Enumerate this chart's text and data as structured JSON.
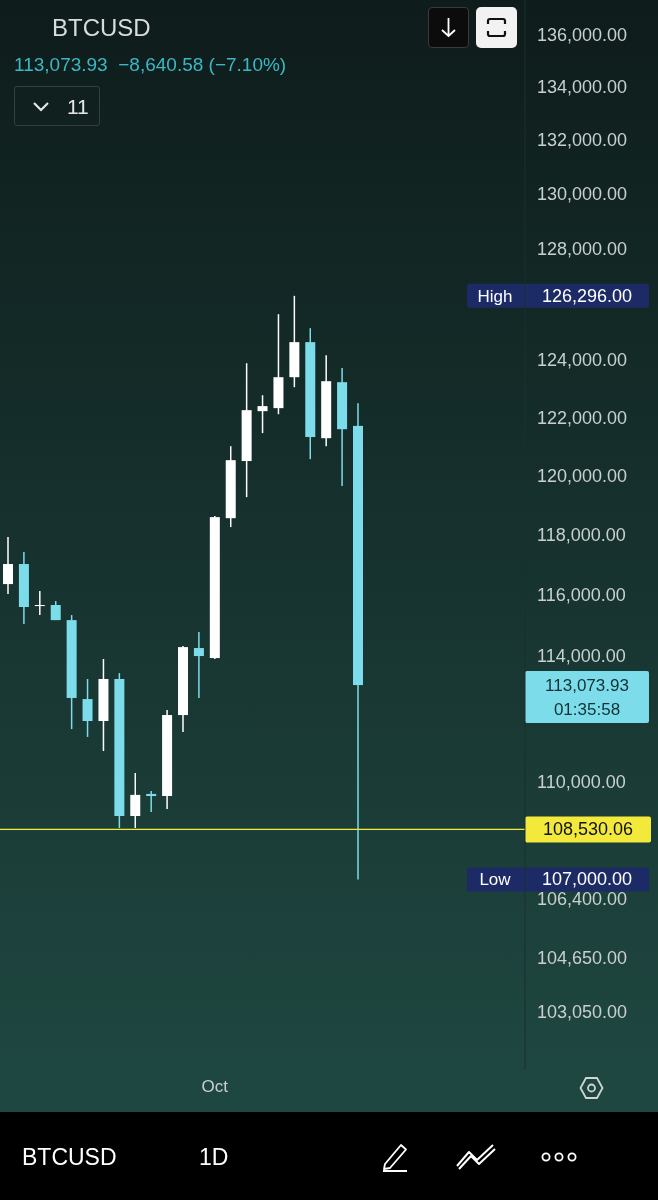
{
  "chart_data": {
    "type": "candlestick",
    "title": "BTCUSD",
    "subtitle": "113,073.93  −8,640.58 (−7.10%)",
    "categories": [
      null,
      null,
      null,
      null,
      null,
      null,
      null,
      null,
      null,
      null,
      null,
      null,
      null,
      "Oct",
      null,
      null,
      null,
      null,
      null,
      null,
      null,
      null,
      null,
      null,
      null,
      null,
      null,
      null,
      null,
      null,
      null,
      null,
      null
    ],
    "ohlc": [
      [
        116365,
        117930,
        116035,
        117030
      ],
      [
        117030,
        117430,
        115050,
        115610
      ],
      [
        115640,
        116135,
        115345,
        115675
      ],
      [
        115675,
        115805,
        115180,
        115180
      ],
      [
        115180,
        115345,
        111670,
        112660
      ],
      [
        112625,
        113270,
        111420,
        111925
      ],
      [
        111925,
        113915,
        110975,
        113270
      ],
      [
        113270,
        113460,
        108575,
        108945
      ],
      [
        108945,
        110285,
        108575,
        109600
      ],
      [
        109630,
        109725,
        109070,
        109565
      ],
      [
        109565,
        112275,
        109165,
        112115
      ],
      [
        112115,
        114335,
        111575,
        114300
      ],
      [
        114270,
        114790,
        112660,
        114010
      ],
      [
        113945,
        118635,
        113915,
        118600
      ],
      [
        118565,
        121015,
        118265,
        120535
      ],
      [
        120505,
        123900,
        119275,
        122260
      ],
      [
        122225,
        122780,
        121465,
        122400
      ],
      [
        122330,
        125640,
        122120,
        123410
      ],
      [
        123410,
        126296,
        123060,
        124645
      ],
      [
        124645,
        125140,
        120570,
        121330
      ],
      [
        121290,
        124185,
        121015,
        123270
      ],
      [
        123235,
        123730,
        119650,
        121600
      ],
      [
        121714.51,
        122500,
        107000,
        113073.93
      ],
      null,
      null,
      null,
      null,
      null,
      null,
      null,
      null,
      null,
      null
    ],
    "colors": [
      "#ffffff",
      "#7ddcea",
      "#ffffff",
      "#7ddcea",
      "#7ddcea",
      "#7ddcea",
      "#ffffff",
      "#7ddcea",
      "#ffffff",
      "#7ddcea",
      "#ffffff",
      "#ffffff",
      "#7ddcea",
      "#ffffff",
      "#ffffff",
      "#ffffff",
      "#ffffff",
      "#ffffff",
      "#ffffff",
      "#7ddcea",
      "#ffffff",
      "#7ddcea",
      "#7ddcea",
      null,
      null,
      null,
      null,
      null,
      null,
      null,
      null,
      null,
      null
    ],
    "log": "y",
    "ylim": [
      101360,
      137370
    ],
    "yticks": [
      {
        "value": 136000,
        "label": "136,000.00"
      },
      {
        "value": 134000,
        "label": "134,000.00"
      },
      {
        "value": 132000,
        "label": "132,000.00"
      },
      {
        "value": 130000,
        "label": "130,000.00"
      },
      {
        "value": 128000,
        "label": "128,000.00"
      },
      {
        "value": 124000,
        "label": "124,000.00"
      },
      {
        "value": 122000,
        "label": "122,000.00"
      },
      {
        "value": 120000,
        "label": "120,000.00"
      },
      {
        "value": 118000,
        "label": "118,000.00"
      },
      {
        "value": 116000,
        "label": "116,000.00"
      },
      {
        "value": 114000,
        "label": "114,000.00"
      },
      {
        "value": 110000,
        "label": "110,000.00"
      },
      {
        "value": 106400,
        "label": "106,400.00"
      },
      {
        "value": 104650,
        "label": "104,650.00"
      },
      {
        "value": 103050,
        "label": "103,050.00"
      }
    ],
    "grid": false,
    "legend": false,
    "ref_lines": [
      {
        "axis": "y",
        "value": 108530.06,
        "label": "108,530.06",
        "color": "#f2e93a"
      }
    ],
    "annotations": [
      "High",
      "126,296.00",
      "113,073.93",
      "01:35:58",
      "Low",
      "107,000.00",
      "11",
      "BTCUSD",
      "1D"
    ]
  }
}
